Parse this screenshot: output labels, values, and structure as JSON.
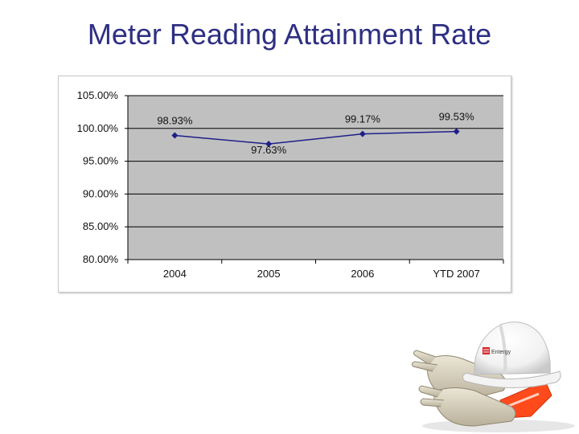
{
  "slide": {
    "title": "Meter Reading Attainment Rate"
  },
  "logo_text": "Entergy",
  "colors": {
    "title": "#2e2f82",
    "plot_area": "#c0c0c0",
    "series_line": "#1f1f8a",
    "helmet": "#ffffff",
    "glove": "#d8d2bf",
    "vest": "#ff4a1c"
  },
  "chart_data": {
    "type": "line",
    "title": "",
    "xlabel": "",
    "ylabel": "",
    "categories": [
      "2004",
      "2005",
      "2006",
      "YTD 2007"
    ],
    "series": [
      {
        "values": [
          98.93,
          97.63,
          99.17,
          99.53
        ],
        "labels": [
          "98.93%",
          "97.63%",
          "99.17%",
          "99.53%"
        ]
      }
    ],
    "ylim": [
      80,
      105
    ],
    "yticks": [
      80,
      85,
      90,
      95,
      100,
      105
    ],
    "ytick_labels": [
      "80.00%",
      "85.00%",
      "90.00%",
      "95.00%",
      "100.00%",
      "105.00%"
    ],
    "grid": true,
    "legend": "none"
  }
}
